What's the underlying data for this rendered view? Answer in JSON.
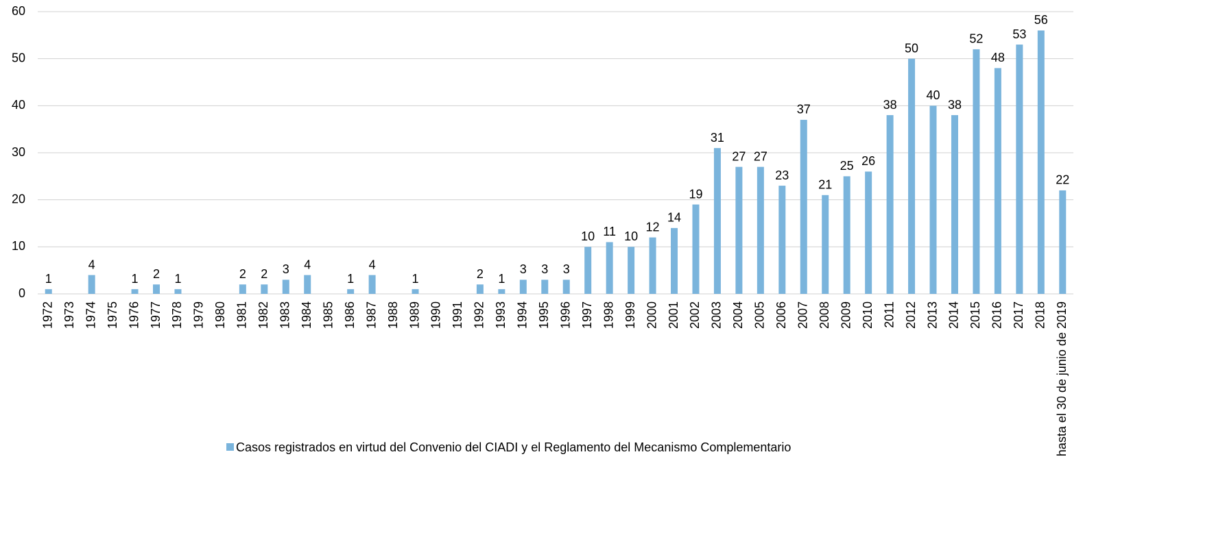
{
  "chart_data": {
    "type": "bar",
    "categories": [
      "1972",
      "1973",
      "1974",
      "1975",
      "1976",
      "1977",
      "1978",
      "1979",
      "1980",
      "1981",
      "1982",
      "1983",
      "1984",
      "1985",
      "1986",
      "1987",
      "1988",
      "1989",
      "1990",
      "1991",
      "1992",
      "1993",
      "1994",
      "1995",
      "1996",
      "1997",
      "1998",
      "1999",
      "2000",
      "2001",
      "2002",
      "2003",
      "2004",
      "2005",
      "2006",
      "2007",
      "2008",
      "2009",
      "2010",
      "2011",
      "2012",
      "2013",
      "2014",
      "2015",
      "2016",
      "2017",
      "2018",
      "hasta el 30 de junio de 2019"
    ],
    "series": [
      {
        "name": "Casos registrados en virtud del Convenio del CIADI y el Reglamento del Mecanismo Complementario",
        "color": "#7ab4dc",
        "values": [
          1,
          null,
          4,
          null,
          1,
          2,
          1,
          null,
          null,
          2,
          2,
          3,
          4,
          null,
          1,
          4,
          null,
          1,
          null,
          null,
          2,
          1,
          3,
          3,
          3,
          10,
          11,
          10,
          12,
          14,
          19,
          31,
          27,
          27,
          23,
          37,
          21,
          25,
          26,
          38,
          50,
          40,
          38,
          52,
          48,
          53,
          56,
          22
        ]
      }
    ],
    "ylim": [
      0,
      60
    ],
    "yticks": [
      0,
      10,
      20,
      30,
      40,
      50,
      60
    ],
    "grid": true,
    "legend": "bottom"
  }
}
